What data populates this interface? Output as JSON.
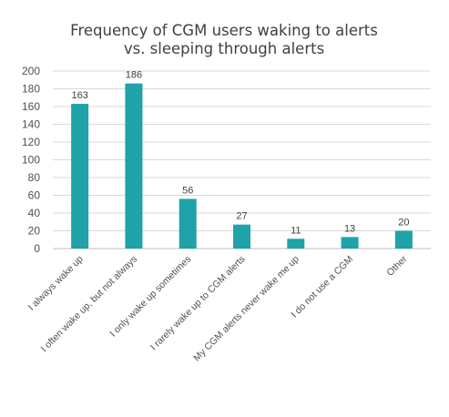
{
  "chart_data": {
    "type": "bar",
    "title": [
      "Frequency of CGM users waking to alerts",
      "vs. sleeping through alerts"
    ],
    "xlabel": "",
    "ylabel": "",
    "categories": [
      "I always wake up",
      "I often wake up, but not always",
      "I only wake up sometimes",
      "I rarely wake up to CGM alerts",
      "My CGM alerts never wake me up",
      "I do not use a CGM",
      "Other"
    ],
    "values": [
      163,
      186,
      56,
      27,
      11,
      13,
      20
    ],
    "ylim": [
      0,
      200
    ],
    "yticks": [
      0,
      20,
      40,
      60,
      80,
      100,
      120,
      140,
      160,
      180,
      200
    ],
    "grid": true,
    "legend": "none",
    "data_labels": true,
    "bar_color": "#1FA2A8",
    "grid_color": "#D9D9D9"
  }
}
